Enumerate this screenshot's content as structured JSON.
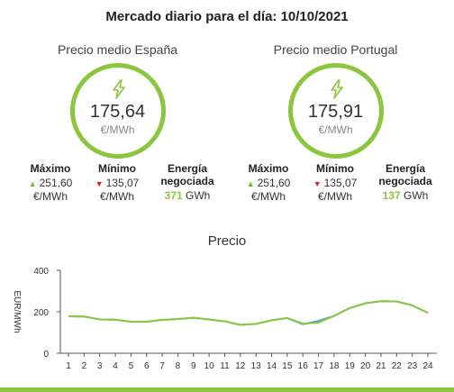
{
  "header": {
    "title": "Mercado diario para el día: 10/10/2021"
  },
  "spain": {
    "title": "Precio medio España",
    "price": "175,64",
    "unit": "€/MWh",
    "max_label": "Máximo",
    "max_value": "251,60",
    "max_unit": "€/MWh",
    "min_label": "Mínimo",
    "min_value": "135,07",
    "min_unit": "€/MWh",
    "energy_label_1": "Energía",
    "energy_label_2": "negociada",
    "energy_value": "371",
    "energy_unit": "GWh"
  },
  "portugal": {
    "title": "Precio medio Portugal",
    "price": "175,91",
    "unit": "€/MWh",
    "max_label": "Máximo",
    "max_value": "251,60",
    "max_unit": "€/MWh",
    "min_label": "Mínimo",
    "min_value": "135,07",
    "min_unit": "€/MWh",
    "energy_label_1": "Energía",
    "energy_label_2": "negociada",
    "energy_value": "137",
    "energy_unit": "GWh"
  },
  "icons": {
    "gauge": "lightning-bolt-icon",
    "max": "triangle-up-icon",
    "min": "triangle-down-icon"
  },
  "colors": {
    "accent": "#8cc63f",
    "up": "#76b82a",
    "down": "#d81e1e",
    "portugal_line": "#3fa9d6"
  },
  "chart_data": {
    "type": "line",
    "title": "Precio",
    "ylabel": "EUR/MWh",
    "xlabel": "",
    "ylim": [
      0,
      400
    ],
    "yticks": [
      0,
      200,
      400
    ],
    "x": [
      1,
      2,
      3,
      4,
      5,
      6,
      7,
      8,
      9,
      10,
      11,
      12,
      13,
      14,
      15,
      16,
      17,
      18,
      19,
      20,
      21,
      22,
      23,
      24
    ],
    "series": [
      {
        "values": [
          178,
          177,
          163,
          162,
          152,
          152,
          161,
          165,
          171,
          163,
          154,
          137,
          142,
          159,
          170,
          143,
          148,
          180,
          218,
          241,
          251,
          250,
          231,
          195
        ]
      },
      {
        "values": [
          178,
          177,
          163,
          162,
          152,
          152,
          161,
          165,
          171,
          163,
          154,
          137,
          142,
          159,
          170,
          140,
          156,
          180,
          218,
          241,
          251,
          250,
          231,
          195
        ]
      }
    ]
  }
}
